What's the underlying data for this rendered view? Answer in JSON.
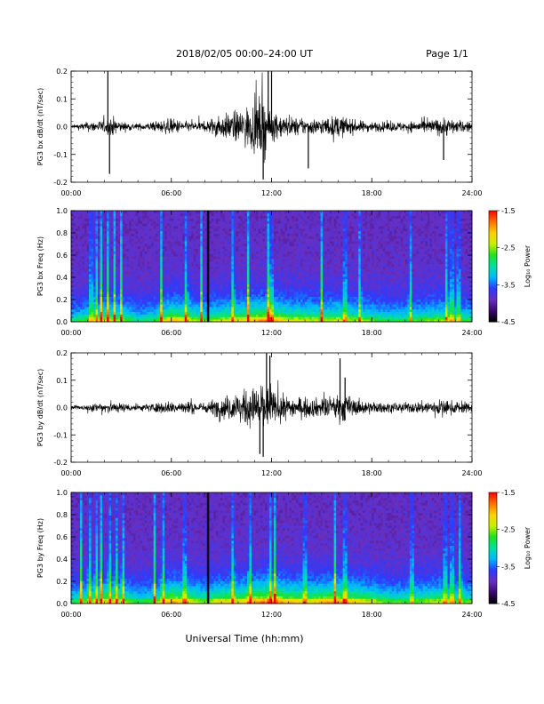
{
  "header": {
    "title": "2018/02/05  00:00–24:00 UT",
    "page": "Page 1/1"
  },
  "footer": {
    "xlabel": "Universal Time (hh:mm)"
  },
  "colorbar": {
    "label": "Log₁₀ Power",
    "ticks": [
      "-1.5",
      "-2.5",
      "-3.5",
      "-4.5"
    ],
    "range": [
      -4.5,
      -1.5
    ],
    "colors": [
      "#000000",
      "#3a0a6e",
      "#6a2fc0",
      "#2b3bff",
      "#00b8ff",
      "#00e0a0",
      "#20e020",
      "#c8f000",
      "#ffd000",
      "#ff7000",
      "#ff0000"
    ]
  },
  "x_ticks": [
    "00:00",
    "06:00",
    "12:00",
    "18:00",
    "24:00"
  ],
  "chart_data": [
    {
      "type": "line",
      "ylabel": "PG3 bx dB/dt (nT/sec)",
      "xlim": [
        0,
        24
      ],
      "ylim": [
        -0.2,
        0.2
      ],
      "yticks": [
        "0.2",
        "0.1",
        "0.0",
        "-0.1",
        "-0.2"
      ],
      "envelope": {
        "x": [
          0,
          1,
          2,
          2.5,
          3,
          4,
          5,
          6,
          7,
          8,
          8.5,
          9,
          10,
          11,
          11.5,
          12,
          13,
          14,
          15,
          16,
          17,
          18,
          19,
          20,
          21,
          22,
          22.5,
          23,
          24
        ],
        "amplitude": [
          0.01,
          0.03,
          0.04,
          0.06,
          0.03,
          0.02,
          0.03,
          0.05,
          0.03,
          0.03,
          0.06,
          0.07,
          0.1,
          0.15,
          0.2,
          0.09,
          0.06,
          0.05,
          0.05,
          0.07,
          0.04,
          0.03,
          0.03,
          0.03,
          0.04,
          0.05,
          0.06,
          0.04,
          0.03
        ]
      },
      "spikes": [
        {
          "x": 2.2,
          "y": 0.2
        },
        {
          "x": 2.3,
          "y": -0.17
        },
        {
          "x": 11.5,
          "y": -0.19
        },
        {
          "x": 11.8,
          "y": 0.2
        },
        {
          "x": 12.0,
          "y": 0.2
        },
        {
          "x": 14.2,
          "y": -0.15
        },
        {
          "x": 22.3,
          "y": -0.12
        }
      ]
    },
    {
      "type": "heatmap",
      "ylabel": "PG3 bx Freq (Hz)",
      "xlim": [
        0,
        24
      ],
      "ylim": [
        0,
        1.0
      ],
      "yticks": [
        "1.0",
        "0.8",
        "0.6",
        "0.4",
        "0.2",
        "0.0"
      ],
      "colorbar_label": "Log₁₀ Power",
      "zlim": [
        -4.5,
        -1.5
      ],
      "activity": {
        "x": [
          0,
          1,
          2,
          3,
          4,
          5,
          6,
          7,
          8,
          9,
          10,
          11,
          12,
          13,
          14,
          15,
          16,
          17,
          18,
          19,
          20,
          21,
          22,
          23,
          24
        ],
        "level": [
          0.3,
          0.4,
          0.5,
          0.45,
          0.3,
          0.35,
          0.6,
          0.5,
          0.4,
          0.5,
          0.5,
          0.6,
          0.65,
          0.5,
          0.5,
          0.45,
          0.5,
          0.45,
          0.4,
          0.35,
          0.35,
          0.4,
          0.45,
          0.4,
          0.35
        ]
      },
      "bursts": [
        1.2,
        1.5,
        1.8,
        2.2,
        2.6,
        3.0,
        5.4,
        6.9,
        7.8,
        9.7,
        10.6,
        11.8,
        12.0,
        15.0,
        16.4,
        17.3,
        20.3,
        22.5,
        22.8,
        23.2
      ],
      "gap_x": 8.2
    },
    {
      "type": "line",
      "ylabel": "PG3 by dB/dt (nT/sec)",
      "xlim": [
        0,
        24
      ],
      "ylim": [
        -0.2,
        0.2
      ],
      "yticks": [
        "0.2",
        "0.1",
        "0.0",
        "-0.1",
        "-0.2"
      ],
      "envelope": {
        "x": [
          0,
          1,
          2,
          3,
          4,
          5,
          6,
          7,
          8,
          8.5,
          9,
          10,
          11,
          11.5,
          12,
          13,
          14,
          15,
          16,
          16.3,
          17,
          18,
          19,
          20,
          21,
          22,
          23,
          24
        ],
        "amplitude": [
          0.01,
          0.02,
          0.04,
          0.03,
          0.02,
          0.03,
          0.04,
          0.04,
          0.03,
          0.05,
          0.07,
          0.09,
          0.13,
          0.17,
          0.1,
          0.07,
          0.06,
          0.06,
          0.08,
          0.1,
          0.05,
          0.04,
          0.03,
          0.03,
          0.04,
          0.05,
          0.04,
          0.03
        ]
      },
      "spikes": [
        {
          "x": 11.3,
          "y": -0.17
        },
        {
          "x": 11.7,
          "y": 0.2
        },
        {
          "x": 11.9,
          "y": 0.19
        },
        {
          "x": 16.1,
          "y": 0.18
        },
        {
          "x": 16.4,
          "y": 0.11
        },
        {
          "x": 11.5,
          "y": -0.18
        }
      ]
    },
    {
      "type": "heatmap",
      "ylabel": "PG3 by Freq (Hz)",
      "xlim": [
        0,
        24
      ],
      "ylim": [
        0,
        1.0
      ],
      "yticks": [
        "1.0",
        "0.8",
        "0.6",
        "0.4",
        "0.2",
        "0.0"
      ],
      "colorbar_label": "Log₁₀ Power",
      "zlim": [
        -4.5,
        -1.5
      ],
      "activity": {
        "x": [
          0,
          1,
          2,
          3,
          4,
          5,
          6,
          7,
          8,
          9,
          10,
          11,
          12,
          13,
          14,
          15,
          16,
          17,
          18,
          19,
          20,
          21,
          22,
          23,
          24
        ],
        "level": [
          0.35,
          0.45,
          0.55,
          0.5,
          0.35,
          0.4,
          0.65,
          0.55,
          0.45,
          0.55,
          0.55,
          0.65,
          0.7,
          0.6,
          0.55,
          0.6,
          0.65,
          0.55,
          0.5,
          0.4,
          0.4,
          0.45,
          0.5,
          0.45,
          0.4
        ]
      },
      "bursts": [
        0.6,
        1.1,
        1.5,
        1.8,
        2.3,
        2.7,
        3.1,
        5.0,
        5.5,
        6.8,
        9.7,
        10.7,
        11.9,
        12.2,
        14.0,
        15.8,
        16.4,
        20.4,
        22.4,
        22.8,
        23.3
      ],
      "gap_x": 8.2
    }
  ]
}
